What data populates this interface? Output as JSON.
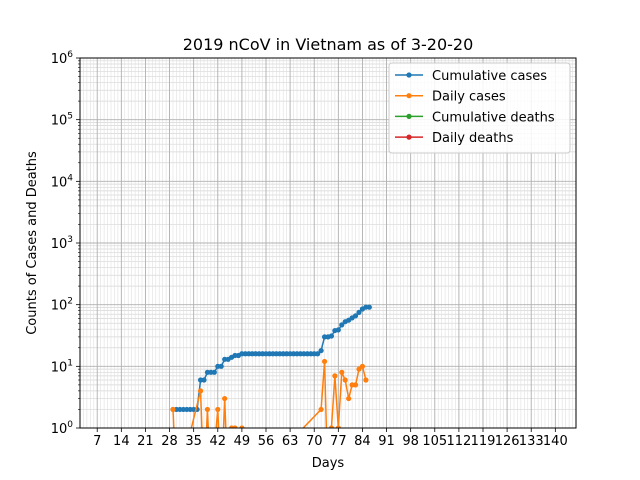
{
  "chart_data": {
    "type": "line",
    "title": "2019 nCoV in Vietnam as of 3-20-20",
    "xlabel": "Days",
    "ylabel": "Counts of Cases and Deaths",
    "y_scale": "log",
    "ylim": [
      1,
      1000000
    ],
    "xlim": [
      2,
      146
    ],
    "x_ticks": [
      7,
      14,
      21,
      28,
      35,
      42,
      49,
      56,
      63,
      70,
      77,
      84,
      91,
      98,
      105,
      112,
      119,
      126,
      133,
      140
    ],
    "x_tick_labels": [
      "7",
      "14",
      "21",
      "28",
      "35",
      "42",
      "49",
      "56",
      "63",
      "70",
      "77",
      "84",
      "91",
      "98",
      "105",
      "112",
      "119",
      "126",
      "133",
      "140"
    ],
    "y_ticks": [
      1,
      10,
      100,
      1000,
      10000,
      100000,
      1000000
    ],
    "y_tick_labels": [
      {
        "base": "10",
        "exp": "0"
      },
      {
        "base": "10",
        "exp": "1"
      },
      {
        "base": "10",
        "exp": "2"
      },
      {
        "base": "10",
        "exp": "3"
      },
      {
        "base": "10",
        "exp": "4"
      },
      {
        "base": "10",
        "exp": "5"
      },
      {
        "base": "10",
        "exp": "6"
      }
    ],
    "grid": true,
    "legend_position": "top-right",
    "series": [
      {
        "name": "Cumulative cases",
        "color": "#1f77b4",
        "points": [
          [
            29,
            2
          ],
          [
            30,
            2
          ],
          [
            31,
            2
          ],
          [
            32,
            2
          ],
          [
            33,
            2
          ],
          [
            34,
            2
          ],
          [
            35,
            2
          ],
          [
            36,
            2
          ],
          [
            37,
            6
          ],
          [
            38,
            6
          ],
          [
            39,
            8
          ],
          [
            40,
            8
          ],
          [
            41,
            8
          ],
          [
            42,
            10
          ],
          [
            43,
            10
          ],
          [
            44,
            13
          ],
          [
            45,
            13
          ],
          [
            46,
            14
          ],
          [
            47,
            15
          ],
          [
            48,
            15
          ],
          [
            49,
            16
          ],
          [
            50,
            16
          ],
          [
            51,
            16
          ],
          [
            52,
            16
          ],
          [
            53,
            16
          ],
          [
            54,
            16
          ],
          [
            55,
            16
          ],
          [
            56,
            16
          ],
          [
            57,
            16
          ],
          [
            58,
            16
          ],
          [
            59,
            16
          ],
          [
            60,
            16
          ],
          [
            61,
            16
          ],
          [
            62,
            16
          ],
          [
            63,
            16
          ],
          [
            64,
            16
          ],
          [
            65,
            16
          ],
          [
            66,
            16
          ],
          [
            67,
            16
          ],
          [
            68,
            16
          ],
          [
            69,
            16
          ],
          [
            70,
            16
          ],
          [
            71,
            16
          ],
          [
            72,
            18
          ],
          [
            73,
            30
          ],
          [
            74,
            30
          ],
          [
            75,
            31
          ],
          [
            76,
            38
          ],
          [
            77,
            39
          ],
          [
            78,
            47
          ],
          [
            79,
            53
          ],
          [
            80,
            56
          ],
          [
            81,
            61
          ],
          [
            82,
            66
          ],
          [
            83,
            75
          ],
          [
            84,
            85
          ],
          [
            85,
            91
          ],
          [
            86,
            91
          ]
        ]
      },
      {
        "name": "Daily cases",
        "color": "#ff7f0e",
        "points": [
          [
            29,
            2
          ],
          [
            30,
            0
          ],
          [
            37,
            4
          ],
          [
            38,
            0
          ],
          [
            39,
            2
          ],
          [
            40,
            0
          ],
          [
            42,
            2
          ],
          [
            43,
            0
          ],
          [
            44,
            3
          ],
          [
            45,
            0
          ],
          [
            46,
            1
          ],
          [
            47,
            1
          ],
          [
            48,
            0
          ],
          [
            49,
            1
          ],
          [
            50,
            0
          ],
          [
            72,
            2
          ],
          [
            73,
            12
          ],
          [
            74,
            0
          ],
          [
            75,
            1
          ],
          [
            76,
            7
          ],
          [
            77,
            1
          ],
          [
            78,
            8
          ],
          [
            79,
            6
          ],
          [
            80,
            3
          ],
          [
            81,
            5
          ],
          [
            82,
            5
          ],
          [
            83,
            9
          ],
          [
            84,
            10
          ],
          [
            85,
            6
          ]
        ]
      },
      {
        "name": "Cumulative deaths",
        "color": "#2ca02c",
        "points": []
      },
      {
        "name": "Daily deaths",
        "color": "#d62728",
        "points": []
      }
    ]
  }
}
